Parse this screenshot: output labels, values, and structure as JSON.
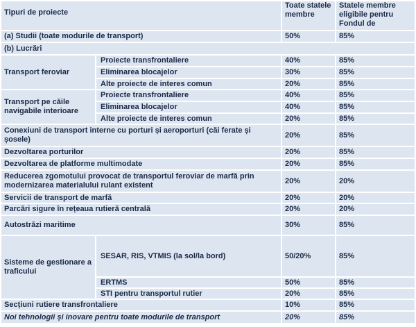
{
  "table": {
    "header": [
      "Tipuri de proiecte",
      "Toate statele membre",
      "Statele membre eligibile pentru Fondul de"
    ],
    "rows": [
      {
        "label": "(a) Studii (toate modurile de transport)",
        "all": "50%",
        "eligible": "85%"
      },
      {
        "label": "(b) Lucrări"
      },
      {
        "label": "Transport feroviar",
        "items": [
          {
            "label": "Proiecte transfrontaliere",
            "all": "40%",
            "eligible": "85%"
          },
          {
            "label": "Eliminarea blocajelor",
            "all": "30%",
            "eligible": "85%"
          },
          {
            "label": "Alte proiecte de interes comun",
            "all": "20%",
            "eligible": "85%"
          }
        ]
      },
      {
        "label": "Transport pe căile navigabile interioare",
        "items": [
          {
            "label": "Proiecte transfrontaliere",
            "all": "40%",
            "eligible": "85%"
          },
          {
            "label": "Eliminarea blocajelor",
            "all": "40%",
            "eligible": "85%"
          },
          {
            "label": "Alte proiecte de interes comun",
            "all": "20%",
            "eligible": "85%"
          }
        ]
      },
      {
        "label": "Conexiuni de transport interne cu porturi și aeroporturi (căi ferate și șosele)",
        "all": "20%",
        "eligible": "85%"
      },
      {
        "label": "Dezvoltarea porturilor",
        "all": "20%",
        "eligible": "85%"
      },
      {
        "label": "Dezvoltarea de platforme multimodate",
        "all": "20%",
        "eligible": "85%"
      },
      {
        "label": "Reducerea zgomotului provocat de transportul feroviar de marfă prin modernizarea materialului rulant existent",
        "all": "20%",
        "eligible": "20%"
      },
      {
        "label": "Servicii de transport de marfă",
        "all": "20%",
        "eligible": "20%"
      },
      {
        "label": "Parcări sigure în rețeaua rutieră centrală",
        "all": "20%",
        "eligible": "20%"
      },
      {
        "label": "Autostrăzi maritime",
        "all": "30%",
        "eligible": "85%"
      },
      {
        "label": "Sisteme de gestionare a traficului",
        "items": [
          {
            "label": "SESAR, RIS, VTMIS (la sol/la bord)",
            "all": "50/20%",
            "eligible": "85%"
          },
          {
            "label": "ERTMS",
            "all": "50%",
            "eligible": "85%"
          },
          {
            "label": "STI pentru transportul rutier",
            "all": "20%",
            "eligible": "85%"
          }
        ]
      },
      {
        "label": "Secțiuni rutiere transfrontaliere",
        "all": "10%",
        "eligible": "85%"
      },
      {
        "label": "Noi tehnologii și inovare pentru toate modurile de transport",
        "all": "20%",
        "eligible": "85%"
      }
    ]
  }
}
